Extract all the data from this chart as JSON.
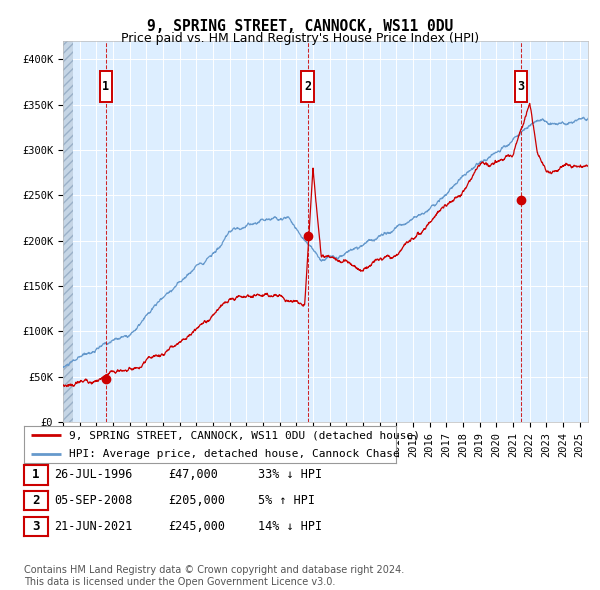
{
  "title": "9, SPRING STREET, CANNOCK, WS11 0DU",
  "subtitle": "Price paid vs. HM Land Registry's House Price Index (HPI)",
  "xlim": [
    1994.0,
    2025.5
  ],
  "ylim": [
    0,
    420000
  ],
  "yticks": [
    0,
    50000,
    100000,
    150000,
    200000,
    250000,
    300000,
    350000,
    400000
  ],
  "ytick_labels": [
    "£0",
    "£50K",
    "£100K",
    "£150K",
    "£200K",
    "£250K",
    "£300K",
    "£350K",
    "£400K"
  ],
  "xticks": [
    1994,
    1995,
    1996,
    1997,
    1998,
    1999,
    2000,
    2001,
    2002,
    2003,
    2004,
    2005,
    2006,
    2007,
    2008,
    2009,
    2010,
    2011,
    2012,
    2013,
    2014,
    2015,
    2016,
    2017,
    2018,
    2019,
    2020,
    2021,
    2022,
    2023,
    2024,
    2025
  ],
  "red_line_color": "#cc0000",
  "blue_line_color": "#6699cc",
  "background_color": "#ddeeff",
  "grid_color": "#ffffff",
  "dashed_vline_color": "#cc0000",
  "sale_events": [
    {
      "year": 1996.57,
      "price": 47000,
      "label": "1"
    },
    {
      "year": 2008.68,
      "price": 205000,
      "label": "2"
    },
    {
      "year": 2021.47,
      "price": 245000,
      "label": "3"
    }
  ],
  "legend_entries": [
    {
      "label": "9, SPRING STREET, CANNOCK, WS11 0DU (detached house)",
      "color": "#cc0000"
    },
    {
      "label": "HPI: Average price, detached house, Cannock Chase",
      "color": "#6699cc"
    }
  ],
  "table_rows": [
    {
      "num": "1",
      "date": "26-JUL-1996",
      "amount": "£47,000",
      "hpi_rel": "33% ↓ HPI"
    },
    {
      "num": "2",
      "date": "05-SEP-2008",
      "amount": "£205,000",
      "hpi_rel": "5% ↑ HPI"
    },
    {
      "num": "3",
      "date": "21-JUN-2021",
      "amount": "£245,000",
      "hpi_rel": "14% ↓ HPI"
    }
  ],
  "footer": "Contains HM Land Registry data © Crown copyright and database right 2024.\nThis data is licensed under the Open Government Licence v3.0.",
  "title_fontsize": 10.5,
  "subtitle_fontsize": 9,
  "tick_fontsize": 7.5,
  "legend_fontsize": 8,
  "table_fontsize": 8.5,
  "footer_fontsize": 7
}
